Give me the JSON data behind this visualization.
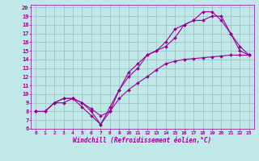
{
  "xlabel": "Windchill (Refroidissement éolien,°C)",
  "bg_color": "#c0e8e8",
  "line_color": "#990099",
  "grid_color": "#99bbbb",
  "xlim": [
    -0.5,
    23.5
  ],
  "ylim": [
    6,
    20.3
  ],
  "xticks": [
    0,
    1,
    2,
    3,
    4,
    5,
    6,
    7,
    8,
    9,
    10,
    11,
    12,
    13,
    14,
    15,
    16,
    17,
    18,
    19,
    20,
    21,
    22,
    23
  ],
  "yticks": [
    6,
    7,
    8,
    9,
    10,
    11,
    12,
    13,
    14,
    15,
    16,
    17,
    18,
    19,
    20
  ],
  "series": [
    {
      "x": [
        0,
        1,
        2,
        3,
        4,
        5,
        6,
        7,
        8,
        9,
        10,
        11,
        12,
        13,
        14,
        15,
        16,
        17,
        18,
        19,
        20,
        21,
        22,
        23
      ],
      "y": [
        8.0,
        8.0,
        9.0,
        9.0,
        9.5,
        9.0,
        8.3,
        7.5,
        8.0,
        9.5,
        10.5,
        11.3,
        12.0,
        12.8,
        13.5,
        13.8,
        14.0,
        14.1,
        14.2,
        14.3,
        14.4,
        14.5,
        14.5,
        14.5
      ]
    },
    {
      "x": [
        0,
        1,
        2,
        3,
        4,
        5,
        6,
        7,
        8,
        9,
        10,
        11,
        12,
        13,
        14,
        15,
        16,
        17,
        18,
        19,
        20,
        21,
        22,
        23
      ],
      "y": [
        8.0,
        8.0,
        9.0,
        9.5,
        9.5,
        8.5,
        7.5,
        6.5,
        8.5,
        10.5,
        12.5,
        13.5,
        14.5,
        15.0,
        15.5,
        16.5,
        18.0,
        18.5,
        18.5,
        19.0,
        19.0,
        17.0,
        15.5,
        14.5
      ]
    },
    {
      "x": [
        0,
        1,
        2,
        3,
        4,
        5,
        6,
        7,
        8,
        9,
        10,
        11,
        12,
        13,
        14,
        15,
        16,
        17,
        18,
        19,
        20,
        21,
        22,
        23
      ],
      "y": [
        8.0,
        8.0,
        9.0,
        9.5,
        9.5,
        9.0,
        8.0,
        6.5,
        8.0,
        10.5,
        12.0,
        13.0,
        14.5,
        15.0,
        16.0,
        17.5,
        18.0,
        18.5,
        19.5,
        19.5,
        18.5,
        17.0,
        15.0,
        14.5
      ]
    }
  ]
}
